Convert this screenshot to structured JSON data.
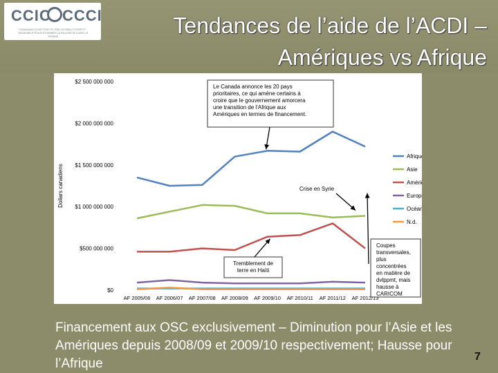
{
  "logo": {
    "left_text": "CCIC",
    "right_text": "CCCI",
    "subtitle": "CANADIAN COALITION TO END GLOBAL POVERTY · ENSEMBLE POUR ÉLIMINER LA PAUVRETÉ DANS LE MONDE"
  },
  "title_line1": "Tendances de l’aide de l’ACDI –",
  "title_line2": "Amériques vs Afrique",
  "footer": "Financement aux OSC exclusivement – Diminution pour l’Asie et les Amériques depuis 2008/09  et 2009/10 respectivement; Hausse pour l’Afrique",
  "page_number": "7",
  "colors": {
    "Afrique": "#4f81bd",
    "Asie": "#9bbb59",
    "Amérique": "#c0504d",
    "Europe": "#8064a2",
    "Océanie": "#4bacc6",
    "N.d.": "#f79646",
    "annotation": "#000000"
  },
  "chart_data": {
    "type": "line",
    "title": "",
    "xlabel": "",
    "ylabel": "Dollars canadiens",
    "ylim": [
      0,
      2500000000
    ],
    "y_ticks": [
      {
        "value": 0,
        "label": "$0"
      },
      {
        "value": 500000000,
        "label": "$500 000 000"
      },
      {
        "value": 1000000000,
        "label": "$1 000 000 000"
      },
      {
        "value": 1500000000,
        "label": "$1 500 000 000"
      },
      {
        "value": 2000000000,
        "label": "$2 000 000 000"
      },
      {
        "value": 2500000000,
        "label": "$2 500 000 000"
      }
    ],
    "categories": [
      "AF 2005/06",
      "AF 2006/07",
      "AF 2007/08",
      "AF 2008/09",
      "AF 2009/10",
      "AF 2010/11",
      "AF 2011/12",
      "AF 2012/13"
    ],
    "series": [
      {
        "name": "Afrique",
        "values": [
          1350000000,
          1250000000,
          1260000000,
          1600000000,
          1670000000,
          1660000000,
          1900000000,
          1720000000
        ]
      },
      {
        "name": "Asie",
        "values": [
          860000000,
          940000000,
          1020000000,
          1010000000,
          920000000,
          920000000,
          870000000,
          890000000
        ]
      },
      {
        "name": "Amérique",
        "values": [
          460000000,
          460000000,
          500000000,
          480000000,
          640000000,
          660000000,
          800000000,
          500000000
        ]
      },
      {
        "name": "Europe",
        "values": [
          90000000,
          120000000,
          90000000,
          80000000,
          80000000,
          80000000,
          100000000,
          90000000
        ]
      },
      {
        "name": "Océanie",
        "values": [
          20000000,
          20000000,
          20000000,
          20000000,
          20000000,
          20000000,
          20000000,
          20000000
        ]
      },
      {
        "name": "N.d.",
        "values": [
          10000000,
          30000000,
          10000000,
          10000000,
          10000000,
          10000000,
          10000000,
          10000000
        ]
      }
    ],
    "legend_position": "right",
    "grid": false,
    "annotations": [
      {
        "text": "Le Canada annonce les 20 pays prioritaires, ce qui amène certains à croire que le gouvernement amorcera une transition de l’Afrique aux Amériques en termes de financement.",
        "target_category": "AF 2009/10",
        "target_series": "Afrique"
      },
      {
        "text": "Crise en Syrie",
        "target_category": "AF 2012/13",
        "target_series": "Asie"
      },
      {
        "text": "Tremblement de terre en Haïti",
        "target_category": "AF 2009/10",
        "target_series": "Amérique"
      },
      {
        "text": "Coupes transversales, plus concentrées en matière de dvlppmt, mais hausse à CARICOM",
        "target_category": "AF 2012/13",
        "target_series": "Amérique"
      }
    ]
  }
}
